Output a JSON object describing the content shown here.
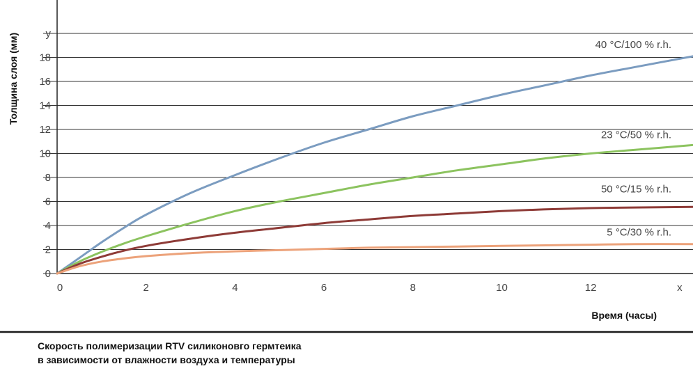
{
  "chart_data": {
    "type": "line",
    "ylabel": "Толщина слоя (мм)",
    "xlabel": "Время (часы)",
    "x_ticks": [
      "0",
      "2",
      "4",
      "6",
      "8",
      "10",
      "12",
      "x"
    ],
    "y_ticks": [
      "0",
      "2",
      "4",
      "6",
      "8",
      "10",
      "12",
      "14",
      "16",
      "18",
      "y"
    ],
    "xlim": [
      0,
      14.3
    ],
    "ylim": [
      0,
      20
    ],
    "grid": "horizontal",
    "series": [
      {
        "name": "40 °C/100 % r.h.",
        "color": "#7b9cc0",
        "x": [
          0,
          0.5,
          1,
          1.5,
          2,
          3,
          4,
          5,
          6,
          7,
          8,
          9,
          10,
          11,
          12,
          13,
          14.3
        ],
        "y": [
          0,
          1.3,
          2.6,
          3.8,
          4.9,
          6.7,
          8.2,
          9.6,
          10.9,
          12.0,
          13.1,
          14.0,
          14.9,
          15.7,
          16.5,
          17.2,
          18.1
        ]
      },
      {
        "name": "23 °C/50 % r.h.",
        "color": "#8cc35f",
        "x": [
          0,
          0.5,
          1,
          1.5,
          2,
          3,
          4,
          5,
          6,
          7,
          8,
          9,
          10,
          11,
          12,
          13,
          14.3
        ],
        "y": [
          0,
          1.0,
          1.8,
          2.5,
          3.1,
          4.2,
          5.2,
          6.0,
          6.7,
          7.4,
          8.0,
          8.6,
          9.1,
          9.6,
          10.0,
          10.3,
          10.7
        ]
      },
      {
        "name": "50 °C/15 % r.h.",
        "color": "#8e3b37",
        "x": [
          0,
          0.5,
          1,
          1.5,
          2,
          3,
          4,
          5,
          6,
          7,
          8,
          9,
          10,
          11,
          12,
          13,
          14.3
        ],
        "y": [
          0,
          0.8,
          1.4,
          1.9,
          2.3,
          2.9,
          3.4,
          3.8,
          4.2,
          4.5,
          4.8,
          5.0,
          5.2,
          5.35,
          5.45,
          5.5,
          5.55
        ]
      },
      {
        "name": "5 °C/30 % r.h.",
        "color": "#eca27a",
        "x": [
          0,
          0.5,
          1,
          1.5,
          2,
          3,
          4,
          5,
          6,
          7,
          8,
          9,
          10,
          11,
          12,
          13,
          14.3
        ],
        "y": [
          0,
          0.6,
          1.0,
          1.25,
          1.45,
          1.7,
          1.85,
          1.95,
          2.05,
          2.15,
          2.2,
          2.25,
          2.3,
          2.35,
          2.4,
          2.45,
          2.45
        ]
      }
    ]
  },
  "caption": {
    "line1": "Скорость полимеризации RTV силиконовго гермтеика",
    "line2": "в зависимости от влажности воздуха и температуры"
  }
}
